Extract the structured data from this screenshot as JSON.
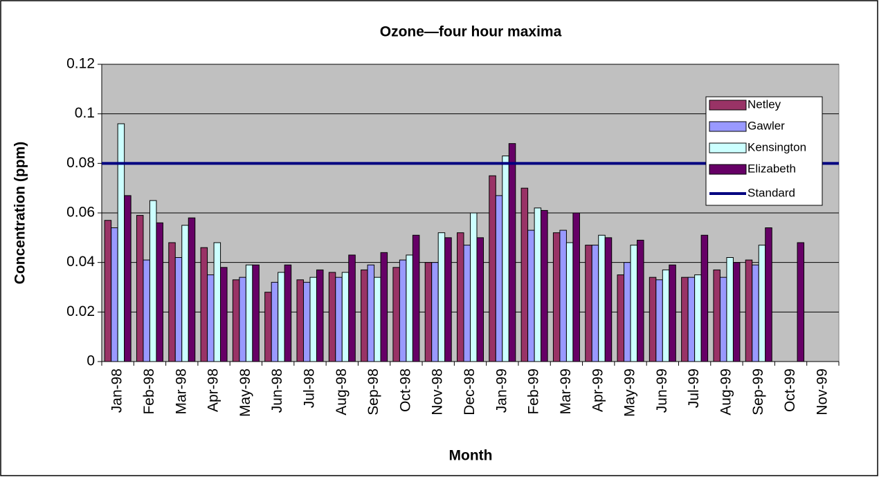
{
  "chart_data": {
    "type": "bar",
    "title": "Ozone—four hour maxima",
    "x_label": "Month",
    "y_label": "Concentration (ppm)",
    "categories": [
      "Jan-98",
      "Feb-98",
      "Mar-98",
      "Apr-98",
      "May-98",
      "Jun-98",
      "Jul-98",
      "Aug-98",
      "Sep-98",
      "Oct-98",
      "Nov-98",
      "Dec-98",
      "Jan-99",
      "Feb-99",
      "Mar-99",
      "Apr-99",
      "May-99",
      "Jun-99",
      "Jul-99",
      "Aug-99",
      "Sep-99",
      "Oct-99",
      "Nov-99"
    ],
    "series": [
      {
        "name": "Netley",
        "color": "#993366",
        "values": [
          0.057,
          0.059,
          0.048,
          0.046,
          0.033,
          0.028,
          0.033,
          0.036,
          0.037,
          0.038,
          0.04,
          0.052,
          0.075,
          0.07,
          0.052,
          0.047,
          0.035,
          0.034,
          0.034,
          0.037,
          0.041,
          null,
          null
        ]
      },
      {
        "name": "Gawler",
        "color": "#9999ff",
        "values": [
          0.054,
          0.041,
          0.042,
          0.035,
          0.034,
          0.032,
          0.032,
          0.034,
          0.039,
          0.041,
          0.04,
          0.047,
          0.067,
          0.053,
          0.053,
          0.047,
          0.04,
          0.033,
          0.034,
          0.034,
          0.039,
          null,
          null
        ]
      },
      {
        "name": "Kensington",
        "color": "#ccffff",
        "values": [
          0.096,
          0.065,
          0.055,
          0.048,
          0.039,
          0.036,
          0.034,
          0.036,
          0.034,
          0.043,
          0.052,
          0.06,
          0.083,
          0.062,
          0.048,
          0.051,
          0.047,
          0.037,
          0.035,
          0.042,
          0.047,
          null,
          null
        ]
      },
      {
        "name": "Elizabeth",
        "color": "#660066",
        "values": [
          0.067,
          0.056,
          0.058,
          0.038,
          0.039,
          0.039,
          0.037,
          0.043,
          0.044,
          0.051,
          0.05,
          0.05,
          0.088,
          0.061,
          0.06,
          0.05,
          0.049,
          0.039,
          0.051,
          0.04,
          0.054,
          0.048,
          null
        ]
      },
      {
        "name": "Standard",
        "color": "#000080",
        "type": "line",
        "values": [
          0.08,
          0.08,
          0.08,
          0.08,
          0.08,
          0.08,
          0.08,
          0.08,
          0.08,
          0.08,
          0.08,
          0.08,
          0.08,
          0.08,
          0.08,
          0.08,
          0.08,
          0.08,
          0.08,
          0.08,
          0.08,
          0.08,
          0.08
        ]
      }
    ],
    "ylim": [
      0,
      0.12
    ],
    "yticks": [
      0,
      0.02,
      0.04,
      0.06,
      0.08,
      0.1,
      0.12
    ],
    "grid": true,
    "legend": "upper right",
    "plot_background": "#c0c0c0"
  }
}
